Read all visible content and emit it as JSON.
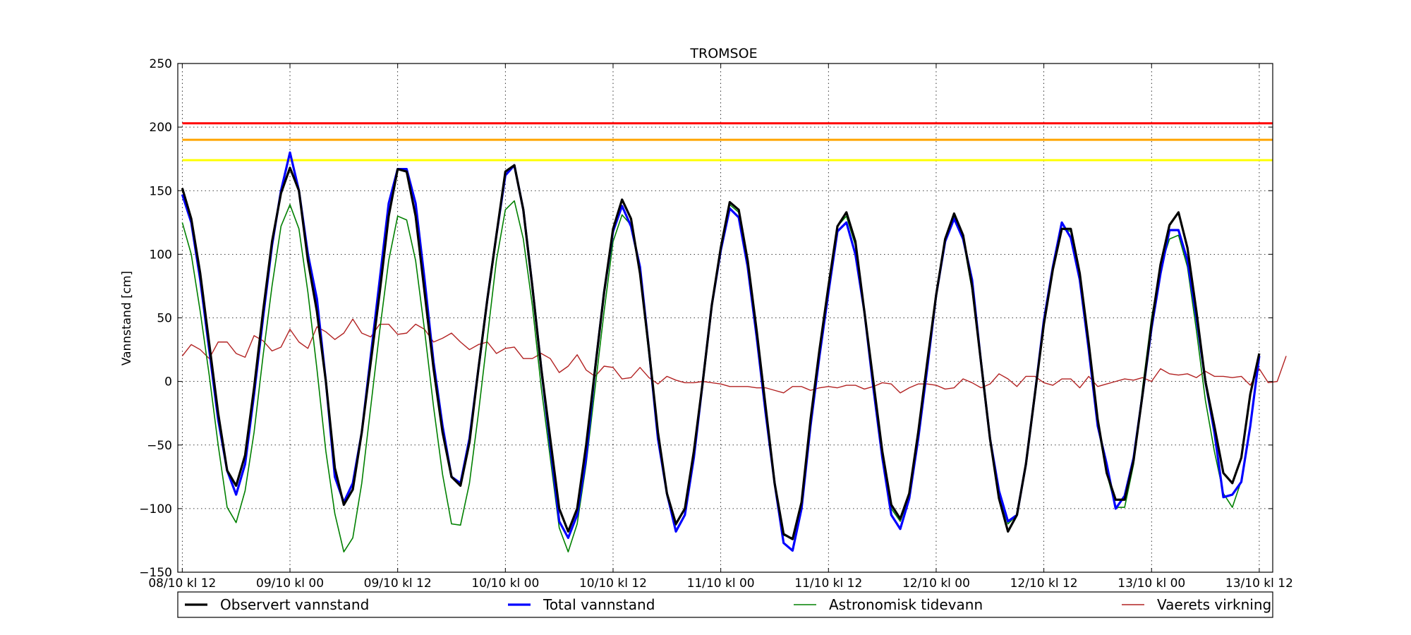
{
  "chart_data": {
    "type": "line",
    "title": "TROMSOE",
    "xlabel": "",
    "ylabel": "Vannstand [cm]",
    "ylim": [
      -150,
      250
    ],
    "yticks": [
      -150,
      -100,
      -50,
      0,
      50,
      100,
      150,
      200,
      250
    ],
    "ytick_labels": [
      "−150",
      "−100",
      "−50",
      "0",
      "50",
      "100",
      "150",
      "200",
      "250"
    ],
    "xlim_hours": [
      -0.5,
      121.5
    ],
    "x_start": "08/10 kl 12",
    "x_step_hours": 1,
    "xticks_hours": [
      0,
      12,
      24,
      36,
      48,
      60,
      72,
      84,
      96,
      108,
      120
    ],
    "xtick_labels": [
      "08/10 kl 12",
      "09/10 kl 00",
      "09/10 kl 12",
      "10/10 kl 00",
      "10/10 kl 12",
      "11/10 kl 00",
      "11/10 kl 12",
      "12/10 kl 00",
      "12/10 kl 12",
      "13/10 kl 00",
      "13/10 kl 12"
    ],
    "grid": true,
    "legend_position": "bottom",
    "thresholds": [
      {
        "value": 203,
        "color": "#ff0000"
      },
      {
        "value": 190,
        "color": "#ffa500"
      },
      {
        "value": 174,
        "color": "#ffff00"
      }
    ],
    "series": [
      {
        "name": "Observert vannstand",
        "color": "#000000",
        "width": 3.2,
        "values": [
          152,
          128,
          85,
          30,
          -25,
          -70,
          -82,
          -58,
          -5,
          55,
          110,
          148,
          168,
          150,
          95,
          55,
          0,
          -68,
          -97,
          -85,
          -40,
          15,
          70,
          130,
          167,
          165,
          130,
          70,
          10,
          -40,
          -75,
          -82,
          -48,
          10,
          65,
          115,
          165,
          170,
          135,
          75,
          10,
          -45,
          -100,
          -118,
          -100,
          -50,
          10,
          70,
          120,
          143,
          128,
          85,
          25,
          -40,
          -88,
          -112,
          -100,
          -55,
          0,
          60,
          105,
          141,
          135,
          95,
          40,
          -20,
          -80,
          -120,
          -124,
          -95,
          -30,
          25,
          75,
          122,
          133,
          110,
          55,
          0,
          -55,
          -97,
          -108,
          -88,
          -40,
          15,
          68,
          112,
          132,
          115,
          75,
          15,
          -45,
          -92,
          -118,
          -105,
          -65,
          -10,
          45,
          88,
          120,
          120,
          85,
          30,
          -30,
          -72,
          -93,
          -93,
          -62,
          -10,
          45,
          92,
          123,
          133,
          105,
          55,
          0,
          -35,
          -72,
          -80,
          -60,
          -10,
          22
        ]
      },
      {
        "name": "Total vannstand",
        "color": "#0000ff",
        "width": 3.2,
        "values": [
          147,
          125,
          80,
          25,
          -30,
          -70,
          -89,
          -65,
          -10,
          50,
          107,
          150,
          180,
          150,
          100,
          65,
          0,
          -75,
          -95,
          -80,
          -40,
          20,
          80,
          140,
          167,
          167,
          140,
          80,
          15,
          -35,
          -75,
          -80,
          -45,
          10,
          65,
          115,
          162,
          170,
          135,
          75,
          10,
          -50,
          -110,
          -123,
          -105,
          -60,
          10,
          70,
          118,
          138,
          122,
          90,
          25,
          -45,
          -88,
          -118,
          -105,
          -60,
          0,
          60,
          103,
          136,
          129,
          90,
          35,
          -25,
          -80,
          -127,
          -133,
          -100,
          -35,
          20,
          70,
          118,
          125,
          100,
          55,
          -5,
          -60,
          -105,
          -116,
          -92,
          -45,
          10,
          68,
          110,
          128,
          112,
          80,
          15,
          -45,
          -86,
          -110,
          -105,
          -65,
          -10,
          48,
          90,
          125,
          113,
          80,
          25,
          -35,
          -65,
          -100,
          -90,
          -60,
          -10,
          42,
          85,
          119,
          119,
          95,
          50,
          0,
          -40,
          -91,
          -89,
          -79,
          -35,
          20
        ]
      },
      {
        "name": "Astronomisk tidevann",
        "color": "#008000",
        "width": 1.6,
        "values": [
          125,
          100,
          55,
          5,
          -50,
          -99,
          -111,
          -86,
          -40,
          20,
          75,
          122,
          139,
          120,
          70,
          10,
          -55,
          -104,
          -134,
          -123,
          -80,
          -20,
          40,
          95,
          130,
          127,
          95,
          40,
          -20,
          -73,
          -112,
          -113,
          -80,
          -25,
          35,
          95,
          135,
          142,
          112,
          60,
          -5,
          -60,
          -115,
          -134,
          -112,
          -65,
          -5,
          55,
          110,
          131,
          123,
          85,
          20,
          -45,
          -90,
          -113,
          -100,
          -57,
          0,
          60,
          107,
          139,
          133,
          90,
          35,
          -25,
          -80,
          -121,
          -123,
          -95,
          -35,
          20,
          72,
          122,
          130,
          107,
          55,
          -5,
          -58,
          -100,
          -110,
          -90,
          -45,
          10,
          66,
          112,
          130,
          112,
          72,
          15,
          -45,
          -90,
          -112,
          -105,
          -65,
          -10,
          45,
          90,
          120,
          118,
          82,
          25,
          -35,
          -72,
          -99,
          -99,
          -65,
          -5,
          50,
          90,
          112,
          115,
          90,
          40,
          -15,
          -55,
          -88,
          -99,
          -78,
          -35,
          18
        ]
      },
      {
        "name": "Vaerets virkning",
        "color": "#b22222",
        "width": 1.4,
        "values": [
          20,
          29,
          25,
          18,
          31,
          31,
          22,
          19,
          36,
          32,
          24,
          27,
          41,
          31,
          26,
          43,
          39,
          33,
          38,
          49,
          38,
          35,
          45,
          45,
          37,
          38,
          45,
          41,
          31,
          34,
          38,
          31,
          25,
          29,
          31,
          22,
          26,
          27,
          18,
          18,
          22,
          18,
          7,
          12,
          21,
          9,
          4,
          12,
          11,
          2,
          3,
          11,
          3,
          -2,
          4,
          1,
          -1,
          -1,
          0,
          -1,
          -2,
          -4,
          -4,
          -4,
          -5,
          -5,
          -7,
          -9,
          -4,
          -4,
          -7,
          -5,
          -4,
          -5,
          -3,
          -3,
          -6,
          -4,
          -1,
          -2,
          -9,
          -5,
          -2,
          -2,
          -3,
          -6,
          -5,
          2,
          -1,
          -5,
          -2,
          6,
          2,
          -4,
          4,
          4,
          -1,
          -3,
          2,
          2,
          -5,
          4,
          -4,
          -2,
          0,
          2,
          1,
          3,
          0,
          10,
          6,
          5,
          6,
          3,
          8,
          4,
          4,
          3,
          4,
          -3,
          10,
          -1,
          0,
          20
        ]
      }
    ]
  }
}
